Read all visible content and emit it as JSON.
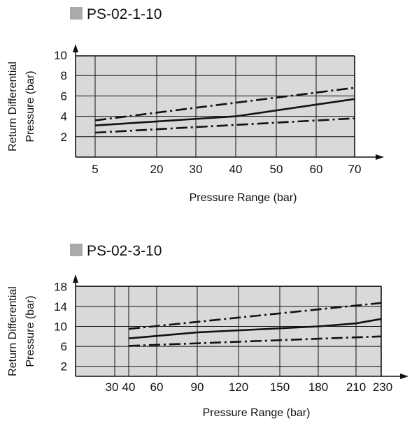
{
  "chart_data": [
    {
      "type": "line",
      "title": "PS-02-1-10",
      "legend_marker_color": "#aaaaaa",
      "xlabel": "Pressure Range (bar)",
      "ylabel": [
        "Return Differential",
        "Pressure (bar)"
      ],
      "x_ticks": [
        5,
        20,
        30,
        40,
        50,
        60,
        70
      ],
      "y_ticks": [
        2,
        4,
        6,
        8,
        10
      ],
      "xlim": [
        5,
        70
      ],
      "ylim": [
        0,
        10
      ],
      "grid": true,
      "plot_background": "#d9d9d9",
      "series": [
        {
          "style": "dashdot",
          "x": [
            5,
            70
          ],
          "y": [
            3.6,
            6.8
          ]
        },
        {
          "style": "solid",
          "x": [
            5,
            40,
            70
          ],
          "y": [
            3.1,
            4.0,
            5.7
          ]
        },
        {
          "style": "dashdot",
          "x": [
            5,
            70
          ],
          "y": [
            2.4,
            3.8
          ]
        }
      ]
    },
    {
      "type": "line",
      "title": "PS-02-3-10",
      "legend_marker_color": "#aaaaaa",
      "xlabel": "Pressure Range (bar)",
      "ylabel": [
        "Return Differential",
        "Pressure (bar)"
      ],
      "x_ticks": [
        30,
        40,
        60,
        90,
        120,
        150,
        180,
        210,
        230
      ],
      "x_tick_labels": [
        "30",
        "40",
        "60",
        "90",
        "120",
        "150",
        "180",
        "210",
        "230"
      ],
      "y_ticks": [
        2,
        6,
        10,
        14,
        18
      ],
      "xlim": [
        30,
        230
      ],
      "ylim": [
        0,
        18
      ],
      "grid": true,
      "plot_background": "#d9d9d9",
      "series": [
        {
          "style": "dashdot",
          "x": [
            40,
            230
          ],
          "y": [
            9.5,
            14.7
          ]
        },
        {
          "style": "solid",
          "x": [
            40,
            90,
            180,
            210,
            230
          ],
          "y": [
            7.6,
            8.8,
            10.0,
            10.6,
            11.5
          ]
        },
        {
          "style": "dashdot",
          "x": [
            40,
            230
          ],
          "y": [
            6.1,
            8.0
          ]
        }
      ]
    }
  ]
}
